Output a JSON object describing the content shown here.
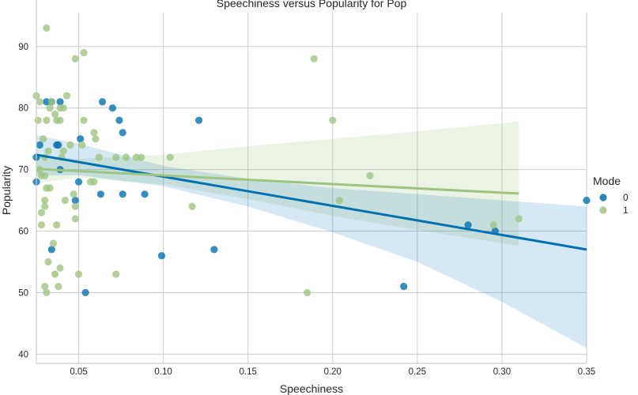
{
  "chart_data": {
    "type": "scatter",
    "title": "Speechiness versus Popularity for Pop",
    "xlabel": "Speechiness",
    "ylabel": "Popularity",
    "xlim": [
      0.025,
      0.35
    ],
    "ylim": [
      38.5,
      95.5
    ],
    "xticks": [
      0.05,
      0.1,
      0.15,
      0.2,
      0.25,
      0.3,
      0.35
    ],
    "xtick_labels": [
      "0.05",
      "0.10",
      "0.15",
      "0.20",
      "0.25",
      "0.30",
      "0.35"
    ],
    "yticks": [
      40,
      50,
      60,
      70,
      80,
      90
    ],
    "ytick_labels": [
      "40",
      "50",
      "60",
      "70",
      "80",
      "90"
    ],
    "grid": true,
    "legend": {
      "title": "Mode",
      "placement": "right"
    },
    "series": [
      {
        "name": "0",
        "color": "#0072B2",
        "points": [
          [
            0.025,
            72
          ],
          [
            0.025,
            68
          ],
          [
            0.027,
            74
          ],
          [
            0.031,
            81
          ],
          [
            0.034,
            81
          ],
          [
            0.034,
            57
          ],
          [
            0.037,
            74
          ],
          [
            0.038,
            74
          ],
          [
            0.039,
            81
          ],
          [
            0.039,
            70
          ],
          [
            0.048,
            65
          ],
          [
            0.05,
            68
          ],
          [
            0.051,
            75
          ],
          [
            0.054,
            50
          ],
          [
            0.063,
            66
          ],
          [
            0.064,
            81
          ],
          [
            0.07,
            80
          ],
          [
            0.074,
            78
          ],
          [
            0.076,
            76
          ],
          [
            0.076,
            66
          ],
          [
            0.089,
            66
          ],
          [
            0.099,
            56
          ],
          [
            0.121,
            78
          ],
          [
            0.13,
            57
          ],
          [
            0.242,
            51
          ],
          [
            0.28,
            61
          ],
          [
            0.296,
            60
          ],
          [
            0.35,
            65
          ]
        ],
        "regression": {
          "x": [
            0.025,
            0.35
          ],
          "y": [
            72.4,
            57.0
          ]
        },
        "ci_band": {
          "x": [
            0.025,
            0.05,
            0.1,
            0.15,
            0.2,
            0.25,
            0.3,
            0.35
          ],
          "lower": [
            69.0,
            69.1,
            67.3,
            64.0,
            59.8,
            55.0,
            48.5,
            41.0
          ],
          "upper": [
            75.6,
            74.2,
            70.6,
            68.5,
            67.0,
            66.0,
            65.0,
            64.0
          ]
        }
      },
      {
        "name": "1",
        "color": "#9DC57F",
        "points": [
          [
            0.025,
            82
          ],
          [
            0.026,
            78
          ],
          [
            0.027,
            81
          ],
          [
            0.027,
            70
          ],
          [
            0.028,
            69
          ],
          [
            0.028,
            63
          ],
          [
            0.028,
            61
          ],
          [
            0.029,
            75
          ],
          [
            0.03,
            72
          ],
          [
            0.03,
            69
          ],
          [
            0.03,
            65
          ],
          [
            0.03,
            64
          ],
          [
            0.03,
            51
          ],
          [
            0.031,
            93
          ],
          [
            0.031,
            78
          ],
          [
            0.031,
            67
          ],
          [
            0.031,
            50
          ],
          [
            0.032,
            73
          ],
          [
            0.032,
            55
          ],
          [
            0.033,
            80
          ],
          [
            0.033,
            67
          ],
          [
            0.034,
            81
          ],
          [
            0.035,
            58
          ],
          [
            0.036,
            79
          ],
          [
            0.036,
            53
          ],
          [
            0.037,
            78
          ],
          [
            0.037,
            61
          ],
          [
            0.038,
            51
          ],
          [
            0.039,
            80
          ],
          [
            0.039,
            78
          ],
          [
            0.039,
            54
          ],
          [
            0.04,
            72
          ],
          [
            0.041,
            80
          ],
          [
            0.041,
            73
          ],
          [
            0.042,
            65
          ],
          [
            0.043,
            82
          ],
          [
            0.045,
            74
          ],
          [
            0.047,
            66
          ],
          [
            0.048,
            88
          ],
          [
            0.048,
            64
          ],
          [
            0.048,
            62
          ],
          [
            0.05,
            53
          ],
          [
            0.052,
            74
          ],
          [
            0.053,
            89
          ],
          [
            0.053,
            78
          ],
          [
            0.057,
            68
          ],
          [
            0.059,
            76
          ],
          [
            0.059,
            68
          ],
          [
            0.06,
            75
          ],
          [
            0.062,
            72
          ],
          [
            0.072,
            72
          ],
          [
            0.072,
            53
          ],
          [
            0.078,
            72
          ],
          [
            0.084,
            72
          ],
          [
            0.087,
            72
          ],
          [
            0.104,
            72
          ],
          [
            0.117,
            64
          ],
          [
            0.185,
            50
          ],
          [
            0.189,
            88
          ],
          [
            0.2,
            78
          ],
          [
            0.204,
            65
          ],
          [
            0.222,
            69
          ],
          [
            0.295,
            61
          ],
          [
            0.31,
            62
          ]
        ],
        "regression": {
          "x": [
            0.025,
            0.31
          ],
          "y": [
            70.1,
            66.1
          ]
        },
        "ci_band": {
          "x": [
            0.025,
            0.05,
            0.1,
            0.15,
            0.2,
            0.25,
            0.31
          ],
          "lower": [
            67.8,
            68.7,
            67.6,
            65.2,
            62.5,
            60.2,
            57.6
          ],
          "upper": [
            72.3,
            71.7,
            72.4,
            73.8,
            75.0,
            76.2,
            77.8
          ]
        }
      }
    ]
  }
}
